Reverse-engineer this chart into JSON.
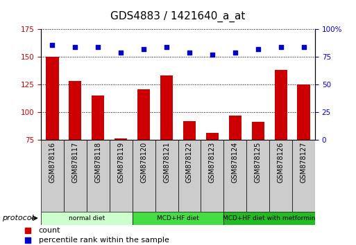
{
  "title": "GDS4883 / 1421640_a_at",
  "samples": [
    "GSM878116",
    "GSM878117",
    "GSM878118",
    "GSM878119",
    "GSM878120",
    "GSM878121",
    "GSM878122",
    "GSM878123",
    "GSM878124",
    "GSM878125",
    "GSM878126",
    "GSM878127"
  ],
  "counts": [
    150,
    128,
    115,
    76,
    121,
    133,
    92,
    81,
    97,
    91,
    138,
    125
  ],
  "percentiles": [
    86,
    84,
    84,
    79,
    82,
    84,
    79,
    77,
    79,
    82,
    84,
    84
  ],
  "bar_color": "#cc0000",
  "dot_color": "#0000cc",
  "ylim_left": [
    75,
    175
  ],
  "ylim_right": [
    0,
    100
  ],
  "yticks_left": [
    75,
    100,
    125,
    150,
    175
  ],
  "yticks_right": [
    0,
    25,
    50,
    75,
    100
  ],
  "groups": [
    {
      "label": "normal diet",
      "start": 0,
      "end": 4,
      "color": "#ccffcc"
    },
    {
      "label": "MCD+HF diet",
      "start": 4,
      "end": 8,
      "color": "#44dd44"
    },
    {
      "label": "MCD+HF diet with metformin",
      "start": 8,
      "end": 12,
      "color": "#22bb22"
    }
  ],
  "legend_items": [
    {
      "label": "count",
      "color": "#cc0000"
    },
    {
      "label": "percentile rank within the sample",
      "color": "#0000cc"
    }
  ],
  "protocol_label": "protocol",
  "background_color": "#ffffff",
  "plot_bg_color": "#ffffff",
  "sample_cell_color": "#cccccc",
  "tick_label_color_left": "#cc0000",
  "tick_label_color_right": "#0000cc",
  "title_fontsize": 11,
  "tick_fontsize": 7.5,
  "label_fontsize": 8
}
